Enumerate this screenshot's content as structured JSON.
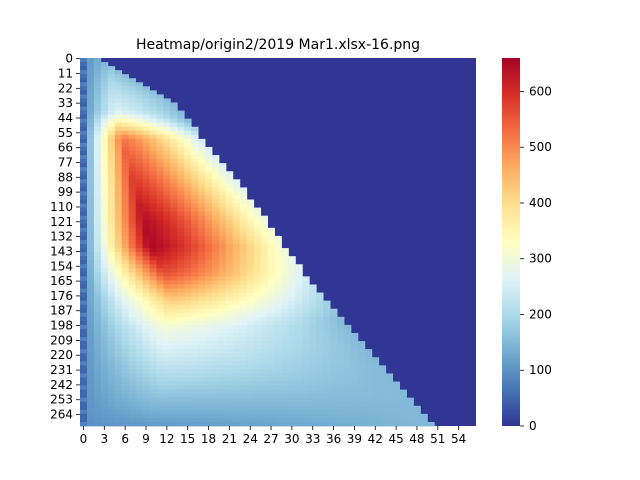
{
  "chart_data": {
    "type": "heatmap",
    "title": "Heatmap/origin2/2019 Mar1.xlsx-16.png",
    "xlabel": "",
    "ylabel": "",
    "n_cols": 57,
    "n_rows": 273,
    "x_tick_labels": [
      "0",
      "3",
      "6",
      "9",
      "12",
      "15",
      "18",
      "21",
      "24",
      "27",
      "30",
      "33",
      "36",
      "39",
      "42",
      "45",
      "48",
      "51",
      "54"
    ],
    "y_tick_labels": [
      "0",
      "11",
      "22",
      "33",
      "44",
      "55",
      "66",
      "77",
      "88",
      "99",
      "110",
      "121",
      "132",
      "143",
      "154",
      "165",
      "176",
      "187",
      "198",
      "209",
      "220",
      "231",
      "242",
      "253",
      "264"
    ],
    "colorbar": {
      "min": 0,
      "max": 660,
      "ticks": [
        "0",
        "100",
        "200",
        "300",
        "400",
        "500",
        "600"
      ],
      "colormap": "RdYlBu_r",
      "colors": [
        "#313695",
        "#4575b4",
        "#74add1",
        "#abd9e9",
        "#e0f3f8",
        "#ffffbf",
        "#fee090",
        "#fdae61",
        "#f46d43",
        "#d73027",
        "#a50026"
      ]
    },
    "value_profile": {
      "description_rows": "row index -> [col of peak, peak value]",
      "peak_points": [
        {
          "row": 0,
          "col": 4,
          "value": 150
        },
        {
          "row": 40,
          "col": 5,
          "value": 260
        },
        {
          "row": 60,
          "col": 6,
          "value": 520
        },
        {
          "row": 80,
          "col": 7,
          "value": 560
        },
        {
          "row": 100,
          "col": 8,
          "value": 600
        },
        {
          "row": 120,
          "col": 9,
          "value": 640
        },
        {
          "row": 140,
          "col": 10,
          "value": 650
        },
        {
          "row": 160,
          "col": 12,
          "value": 560
        },
        {
          "row": 180,
          "col": 13,
          "value": 420
        },
        {
          "row": 200,
          "col": 12,
          "value": 300
        },
        {
          "row": 230,
          "col": 12,
          "value": 220
        },
        {
          "row": 272,
          "col": 10,
          "value": 110
        }
      ],
      "diagonal_boundary": [
        {
          "row": 30,
          "col": 13
        },
        {
          "row": 100,
          "col": 24
        },
        {
          "row": 165,
          "col": 33
        },
        {
          "row": 272,
          "col": 51
        }
      ]
    }
  }
}
